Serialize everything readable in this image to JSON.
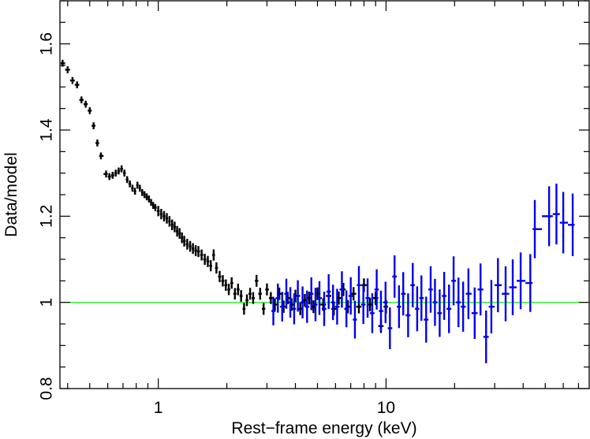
{
  "chart_data": {
    "type": "scatter",
    "xlabel": "Rest−frame energy (keV)",
    "ylabel": "Data/model",
    "xscale": "log",
    "xlim": [
      0.37,
      78
    ],
    "ylim": [
      0.8,
      1.7
    ],
    "xticks": [
      {
        "value": 1,
        "label": "1"
      },
      {
        "value": 10,
        "label": "10"
      }
    ],
    "yticks": [
      {
        "value": 0.8,
        "label": "0.8"
      },
      {
        "value": 1.0,
        "label": "1"
      },
      {
        "value": 1.2,
        "label": "1.2"
      },
      {
        "value": 1.4,
        "label": "1.4"
      },
      {
        "value": 1.6,
        "label": "1.6"
      }
    ],
    "reference_line": {
      "y": 1.0,
      "color": "#00ee00"
    },
    "series": [
      {
        "color": "#000000",
        "marker": "cross",
        "points": [
          [
            0.38,
            1.555
          ],
          [
            0.4,
            1.54
          ],
          [
            0.42,
            1.515
          ],
          [
            0.44,
            1.505
          ],
          [
            0.46,
            1.47
          ],
          [
            0.48,
            1.46
          ],
          [
            0.5,
            1.445
          ],
          [
            0.52,
            1.41
          ],
          [
            0.54,
            1.37
          ],
          [
            0.56,
            1.34
          ],
          [
            0.59,
            1.298
          ],
          [
            0.61,
            1.292
          ],
          [
            0.63,
            1.295
          ],
          [
            0.65,
            1.3
          ],
          [
            0.67,
            1.305
          ],
          [
            0.69,
            1.31
          ],
          [
            0.71,
            1.3
          ],
          [
            0.73,
            1.285
          ],
          [
            0.75,
            1.275
          ],
          [
            0.77,
            1.265
          ],
          [
            0.79,
            1.258
          ],
          [
            0.81,
            1.272
          ],
          [
            0.83,
            1.265
          ],
          [
            0.85,
            1.255
          ],
          [
            0.87,
            1.25
          ],
          [
            0.89,
            1.245
          ],
          [
            0.91,
            1.24
          ],
          [
            0.93,
            1.232
          ],
          [
            0.95,
            1.225
          ],
          [
            0.97,
            1.22
          ],
          [
            1.0,
            1.212
          ],
          [
            1.03,
            1.205
          ],
          [
            1.06,
            1.2
          ],
          [
            1.09,
            1.195
          ],
          [
            1.12,
            1.188
          ],
          [
            1.15,
            1.18
          ],
          [
            1.18,
            1.175
          ],
          [
            1.21,
            1.165
          ],
          [
            1.24,
            1.16
          ],
          [
            1.27,
            1.15
          ],
          [
            1.3,
            1.142
          ],
          [
            1.34,
            1.135
          ],
          [
            1.38,
            1.13
          ],
          [
            1.42,
            1.125
          ],
          [
            1.46,
            1.12
          ],
          [
            1.5,
            1.118
          ],
          [
            1.55,
            1.11
          ],
          [
            1.6,
            1.1
          ],
          [
            1.65,
            1.095
          ],
          [
            1.7,
            1.085
          ],
          [
            1.75,
            1.11
          ],
          [
            1.8,
            1.08
          ],
          [
            1.86,
            1.06
          ],
          [
            1.92,
            1.05
          ],
          [
            1.98,
            1.04
          ],
          [
            2.04,
            1.03
          ],
          [
            2.1,
            1.045
          ],
          [
            2.17,
            1.02
          ],
          [
            2.24,
            1.03
          ],
          [
            2.31,
            1.015
          ],
          [
            2.38,
            0.985
          ],
          [
            2.45,
            1.005
          ],
          [
            2.53,
            1.02
          ],
          [
            2.61,
            1.01
          ],
          [
            2.7,
            1.05
          ],
          [
            2.8,
            1.02
          ],
          [
            2.9,
            0.985
          ],
          [
            3.0,
            1.03
          ],
          [
            3.12,
            1.01
          ],
          [
            3.25,
            0.995
          ],
          [
            3.4,
            1.02
          ],
          [
            3.55,
            0.99
          ],
          [
            3.7,
            1.01
          ],
          [
            3.85,
            0.995
          ],
          [
            4.0,
            1.015
          ],
          [
            4.2,
            0.985
          ],
          [
            4.4,
            1.005
          ],
          [
            4.6,
            1.01
          ],
          [
            4.8,
            0.99
          ],
          [
            5.0,
            1.02
          ],
          [
            5.3,
            0.995
          ],
          [
            5.6,
            1.015
          ],
          [
            5.9,
            0.985
          ],
          [
            6.2,
            1.01
          ],
          [
            6.5,
            1.03
          ],
          [
            6.8,
            0.99
          ],
          [
            7.2,
            1.02
          ],
          [
            7.6,
            0.99
          ],
          [
            8.0,
            1.04
          ],
          [
            8.5,
            0.995
          ],
          [
            9.0,
            1.01
          ],
          [
            9.5,
            0.945
          ],
          [
            10.0,
            0.99
          ]
        ]
      },
      {
        "color": "#0000ee",
        "marker": "cross",
        "points": [
          [
            3.2,
            0.98
          ],
          [
            3.35,
            1.01
          ],
          [
            3.5,
            0.99
          ],
          [
            3.65,
            1.02
          ],
          [
            3.8,
            1.0
          ],
          [
            3.95,
            0.985
          ],
          [
            4.1,
            1.015
          ],
          [
            4.3,
            1.0
          ],
          [
            4.5,
            0.99
          ],
          [
            4.7,
            1.02
          ],
          [
            4.9,
            0.995
          ],
          [
            5.1,
            1.01
          ],
          [
            5.35,
            0.985
          ],
          [
            5.6,
            1.025
          ],
          [
            5.85,
            1.0
          ],
          [
            6.1,
            0.99
          ],
          [
            6.4,
            1.03
          ],
          [
            6.7,
            0.985
          ],
          [
            7.0,
            1.015
          ],
          [
            7.3,
            0.96
          ],
          [
            7.6,
            1.04
          ],
          [
            7.95,
            0.995
          ],
          [
            8.3,
            1.01
          ],
          [
            8.7,
            0.975
          ],
          [
            9.1,
            1.03
          ],
          [
            9.5,
            0.98
          ],
          [
            9.95,
            1.0
          ],
          [
            10.4,
            0.94
          ],
          [
            10.9,
            1.06
          ],
          [
            11.4,
            0.99
          ],
          [
            11.9,
            1.02
          ],
          [
            12.5,
            0.97
          ],
          [
            13.1,
            1.04
          ],
          [
            13.7,
            0.985
          ],
          [
            14.3,
            1.01
          ],
          [
            15.0,
            0.96
          ],
          [
            15.7,
            1.03
          ],
          [
            16.4,
            1.0
          ],
          [
            17.2,
            0.975
          ],
          [
            18.0,
            1.015
          ],
          [
            18.9,
            0.985
          ],
          [
            19.8,
            1.05
          ],
          [
            20.8,
            1.0
          ],
          [
            21.8,
            0.99
          ],
          [
            23.0,
            1.02
          ],
          [
            24.5,
            0.975
          ],
          [
            26.0,
            1.03
          ],
          [
            27.5,
            0.92
          ],
          [
            29.0,
            0.99
          ],
          [
            31.0,
            1.04
          ],
          [
            33.5,
            1.02
          ],
          [
            36.0,
            1.035
          ],
          [
            39.0,
            1.05
          ],
          [
            43.0,
            1.045
          ],
          [
            45.0,
            1.17
          ],
          [
            52.0,
            1.2
          ],
          [
            56.0,
            1.205
          ],
          [
            60.0,
            1.185
          ],
          [
            66.0,
            1.18
          ]
        ]
      }
    ]
  }
}
